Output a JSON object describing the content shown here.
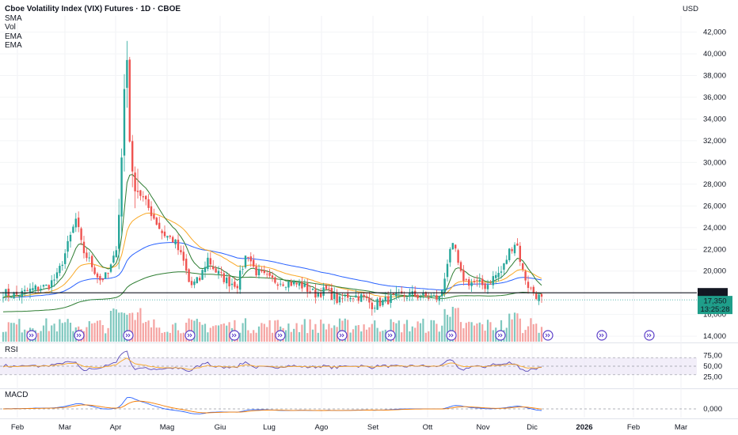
{
  "header": {
    "title": "Cboe Volatility Index (VIX) Futures · 1D · CBOE",
    "indicators": [
      "SMA",
      "Vol",
      "EMA",
      "EMA"
    ]
  },
  "currency": "USD",
  "colors": {
    "up": "#26a69a",
    "down": "#ef5350",
    "up_vol": "#7fc8bf",
    "down_vol": "#f5a3a1",
    "sma": "#2962ff",
    "ema_fast": "#2e7d32",
    "ema_slow": "#f9a825",
    "rsi": "#5b4bb7",
    "rsi_ma": "#f9a825",
    "macd": "#2962ff",
    "signal": "#f57c00",
    "event": "#5b3ec8"
  },
  "price_axis": {
    "ticks": [
      "42,000",
      "40,000",
      "38,000",
      "36,000",
      "34,000",
      "32,000",
      "30,000",
      "28,000",
      "26,000",
      "24,000",
      "22,000",
      "20,000",
      "16,000",
      "14,000"
    ],
    "min": 13.5,
    "max": 43.5
  },
  "badges": {
    "level": "18,000",
    "last_price": "17,350",
    "countdown": "13:25:28"
  },
  "rsi": {
    "label": "RSI",
    "ticks": [
      "75,00",
      "50,00",
      "25,00"
    ]
  },
  "macd": {
    "label": "MACD",
    "ticks": [
      "0,000"
    ]
  },
  "x_axis": {
    "labels": [
      "Feb",
      "Mar",
      "Apr",
      "Mag",
      "Giu",
      "Lug",
      "Ago",
      "Set",
      "Ott",
      "Nov",
      "Dic",
      "2026",
      "Feb",
      "Mar"
    ]
  },
  "chart_data": {
    "type": "candlestick",
    "ylim": [
      13.5,
      43.5
    ],
    "horizontal_level": 18.0,
    "last_price": 17.35,
    "close_series": [
      {
        "date": "Feb",
        "close": 18.0
      },
      {
        "date": "Mar",
        "close": 20.5
      },
      {
        "date": "early Mar",
        "close": 24.8
      },
      {
        "date": "mid Mar",
        "close": 21.0
      },
      {
        "date": "early Apr",
        "close": 40.5
      },
      {
        "date": "mid Apr",
        "close": 29.0
      },
      {
        "date": "late Apr",
        "close": 24.5
      },
      {
        "date": "Mag",
        "close": 22.8
      },
      {
        "date": "mid Mag",
        "close": 19.0
      },
      {
        "date": "Giu",
        "close": 21.0
      },
      {
        "date": "mid Giu",
        "close": 18.5
      },
      {
        "date": "late Giu",
        "close": 21.5
      },
      {
        "date": "Lug",
        "close": 19.2
      },
      {
        "date": "Ago",
        "close": 18.0
      },
      {
        "date": "mid Ago",
        "close": 16.8
      },
      {
        "date": "Set",
        "close": 17.5
      },
      {
        "date": "Ott",
        "close": 17.5
      },
      {
        "date": "mid Ott",
        "close": 22.5
      },
      {
        "date": "Nov",
        "close": 19.5
      },
      {
        "date": "mid Nov",
        "close": 23.0
      },
      {
        "date": "Dic",
        "close": 17.35
      }
    ],
    "sma": {
      "name": "SMA",
      "approx": [
        17.0,
        17.5,
        18.2,
        18.8,
        19.2,
        19.6,
        19.7,
        19.7,
        19.7,
        19.9,
        20.0
      ]
    },
    "ema_fast": {
      "name": "EMA",
      "approx": [
        17.8,
        22.0,
        24.0,
        22.0,
        19.5,
        19.0,
        18.0,
        17.5,
        18.5,
        19.5,
        18.6
      ]
    },
    "ema_slow": {
      "name": "EMA",
      "approx": [
        17.5,
        19.5,
        22.5,
        22.0,
        20.5,
        19.5,
        18.5,
        17.8,
        18.4,
        19.4,
        19.2
      ]
    },
    "rsi": {
      "ylim": [
        0,
        100
      ],
      "levels": [
        70,
        50,
        30
      ],
      "last": 37
    },
    "macd": {
      "zero": 0
    }
  }
}
